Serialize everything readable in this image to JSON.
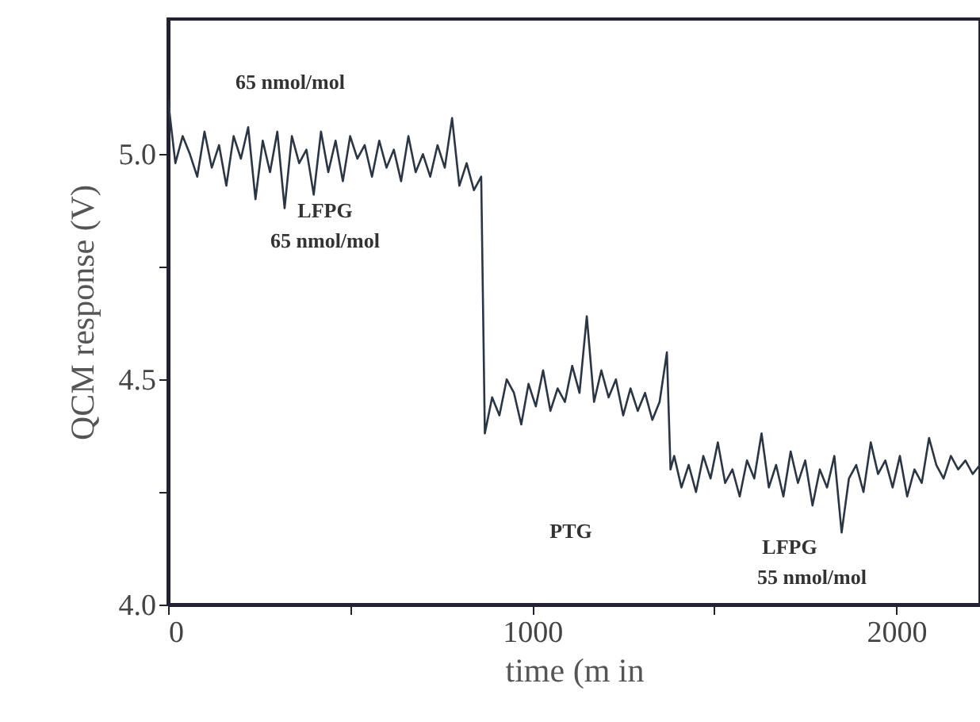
{
  "chart_data": {
    "type": "line",
    "xlabel": "time (m in",
    "ylabel": "QCM response (V)",
    "x": [
      0,
      20,
      40,
      60,
      80,
      100,
      120,
      140,
      160,
      180,
      200,
      220,
      240,
      260,
      280,
      300,
      320,
      340,
      360,
      380,
      400,
      420,
      440,
      460,
      480,
      500,
      520,
      540,
      560,
      580,
      600,
      620,
      640,
      660,
      680,
      700,
      720,
      740,
      760,
      780,
      800,
      820,
      840,
      860,
      870,
      890,
      910,
      930,
      950,
      970,
      990,
      1010,
      1030,
      1050,
      1070,
      1090,
      1110,
      1130,
      1150,
      1170,
      1190,
      1210,
      1230,
      1250,
      1270,
      1290,
      1310,
      1330,
      1350,
      1370,
      1380,
      1390,
      1410,
      1430,
      1450,
      1470,
      1490,
      1510,
      1530,
      1550,
      1570,
      1590,
      1610,
      1630,
      1650,
      1670,
      1690,
      1710,
      1730,
      1750,
      1770,
      1790,
      1810,
      1830,
      1850,
      1870,
      1890,
      1910,
      1930,
      1950,
      1970,
      1990,
      2010,
      2030,
      2050,
      2070,
      2090,
      2110,
      2130,
      2150,
      2170,
      2190,
      2210,
      2230
    ],
    "series": [
      {
        "color": "#2b3644",
        "values": [
          5.12,
          4.98,
          5.04,
          5.0,
          4.95,
          5.05,
          4.97,
          5.02,
          4.93,
          5.04,
          4.99,
          5.06,
          4.9,
          5.03,
          4.96,
          5.05,
          4.88,
          5.04,
          4.98,
          5.01,
          4.91,
          5.05,
          4.96,
          5.03,
          4.94,
          5.04,
          4.99,
          5.02,
          4.95,
          5.03,
          4.97,
          5.01,
          4.94,
          5.04,
          4.96,
          5.0,
          4.95,
          5.02,
          4.97,
          5.08,
          4.93,
          4.98,
          4.92,
          4.95,
          4.38,
          4.46,
          4.42,
          4.5,
          4.47,
          4.4,
          4.49,
          4.44,
          4.52,
          4.43,
          4.48,
          4.45,
          4.53,
          4.47,
          4.64,
          4.45,
          4.52,
          4.46,
          4.5,
          4.42,
          4.48,
          4.43,
          4.47,
          4.41,
          4.45,
          4.56,
          4.3,
          4.33,
          4.26,
          4.31,
          4.25,
          4.33,
          4.28,
          4.36,
          4.27,
          4.3,
          4.24,
          4.32,
          4.28,
          4.38,
          4.26,
          4.31,
          4.24,
          4.34,
          4.27,
          4.32,
          4.22,
          4.3,
          4.26,
          4.33,
          4.16,
          4.28,
          4.31,
          4.25,
          4.36,
          4.29,
          4.32,
          4.26,
          4.33,
          4.24,
          4.3,
          4.27,
          4.37,
          4.31,
          4.28,
          4.33,
          4.3,
          4.32,
          4.29,
          4.31
        ]
      }
    ],
    "xlim": [
      0,
      2230
    ],
    "xticks": [
      0,
      {
        "value": 500,
        "label": null
      },
      1000,
      {
        "value": 1500,
        "label": null
      },
      2000
    ],
    "ylim": [
      4.0,
      5.3
    ],
    "yticks": [
      {
        "value": 4,
        "label": "4.0"
      },
      {
        "value": 4.25,
        "label": null
      },
      {
        "value": 4.5,
        "label": "4.5"
      },
      {
        "value": 4.75,
        "label": null
      },
      {
        "value": 5,
        "label": "5.0"
      }
    ],
    "grid": false,
    "marker": "none",
    "line_style": "solid",
    "annotations": [
      "65 nmol/mol",
      "LFPG",
      "65 nmol/mol",
      "PTG",
      "LFPG",
      "55 nmol/mol"
    ]
  }
}
